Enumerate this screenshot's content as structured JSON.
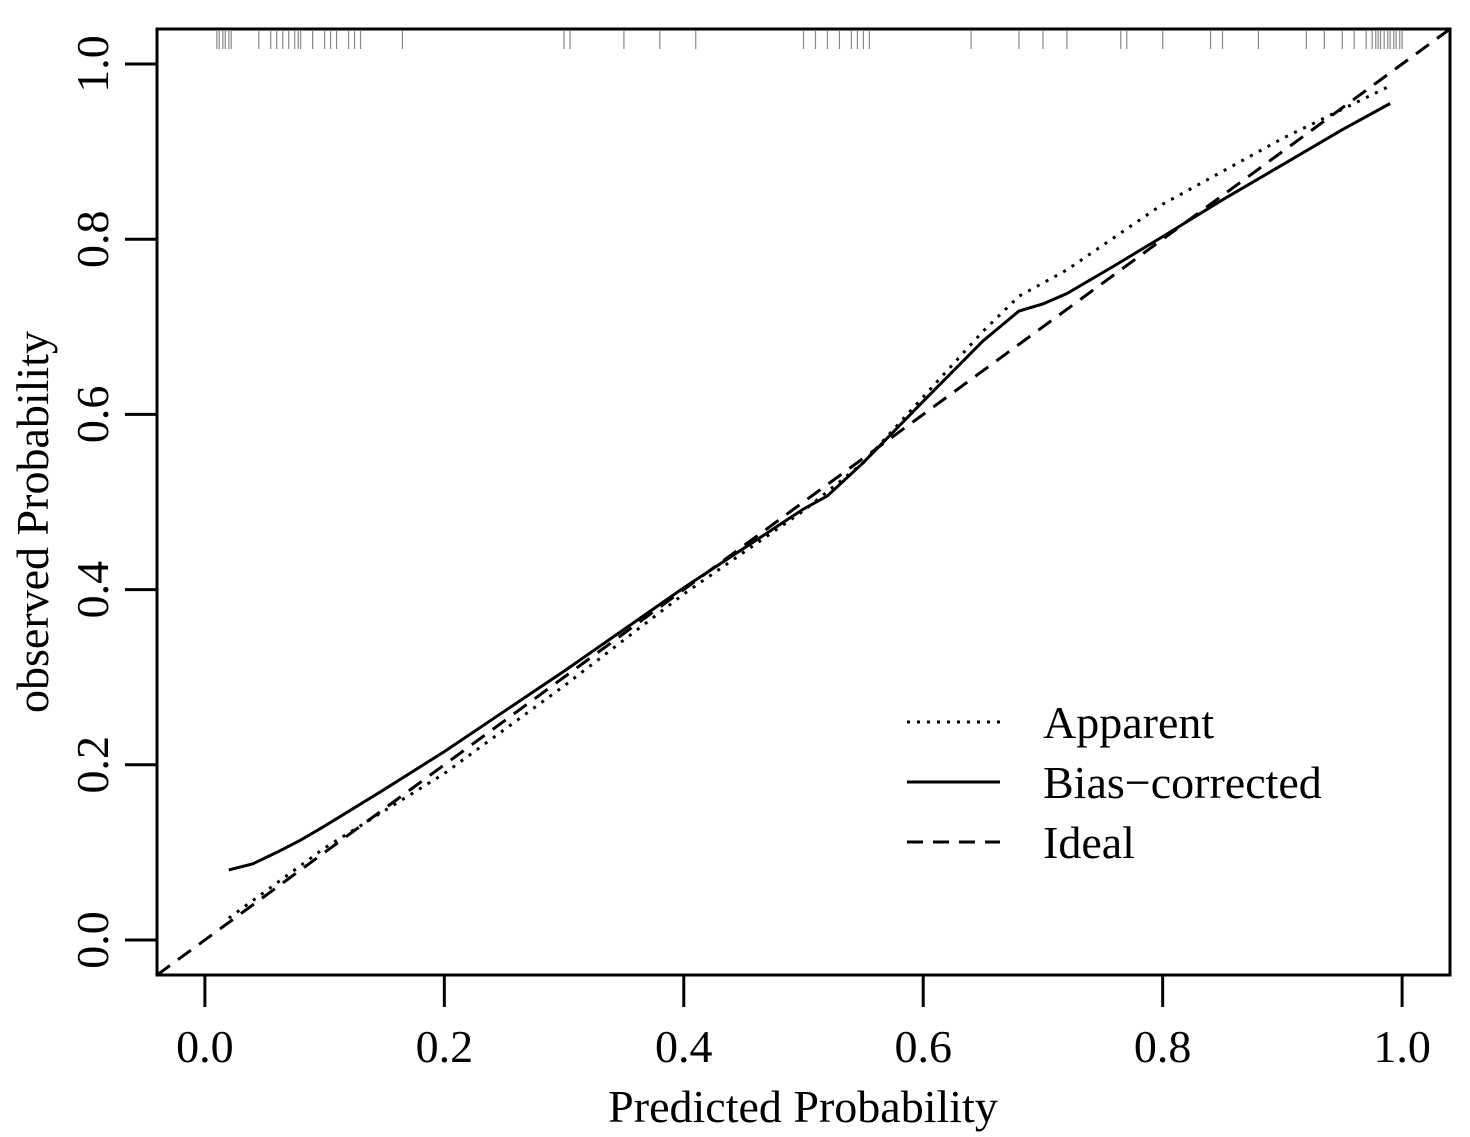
{
  "chart_data": {
    "type": "line",
    "xlabel": "Predicted Probability",
    "ylabel": "observed Probability",
    "xlim": [
      -0.04,
      1.04
    ],
    "ylim": [
      -0.04,
      1.04
    ],
    "x_ticks": [
      0.0,
      0.2,
      0.4,
      0.6,
      0.8,
      1.0
    ],
    "y_ticks": [
      0.0,
      0.2,
      0.4,
      0.6,
      0.8,
      1.0
    ],
    "x_tick_labels": [
      "0.0",
      "0.2",
      "0.4",
      "0.6",
      "0.8",
      "1.0"
    ],
    "y_tick_labels": [
      "0.0",
      "0.2",
      "0.4",
      "0.6",
      "0.8",
      "1.0"
    ],
    "grid": false,
    "legend_position": "bottom-right",
    "series": [
      {
        "name": "Apparent",
        "style": "dotted",
        "color": "#000000",
        "x": [
          0.02,
          0.1,
          0.2,
          0.3,
          0.4,
          0.5,
          0.55,
          0.6,
          0.65,
          0.68,
          0.72,
          0.8,
          0.9,
          0.99
        ],
        "y": [
          0.025,
          0.105,
          0.19,
          0.29,
          0.395,
          0.49,
          0.545,
          0.62,
          0.695,
          0.735,
          0.765,
          0.84,
          0.915,
          0.975
        ]
      },
      {
        "name": "Bias−corrected",
        "style": "solid",
        "color": "#000000",
        "x": [
          0.02,
          0.04,
          0.06,
          0.08,
          0.1,
          0.15,
          0.2,
          0.3,
          0.4,
          0.5,
          0.52,
          0.55,
          0.6,
          0.65,
          0.68,
          0.7,
          0.72,
          0.76,
          0.8,
          0.85,
          0.9,
          0.95,
          0.99
        ],
        "y": [
          0.08,
          0.087,
          0.1,
          0.114,
          0.13,
          0.172,
          0.215,
          0.307,
          0.402,
          0.492,
          0.507,
          0.545,
          0.615,
          0.684,
          0.718,
          0.726,
          0.738,
          0.77,
          0.803,
          0.845,
          0.885,
          0.925,
          0.955
        ]
      },
      {
        "name": "Ideal",
        "style": "dashed",
        "color": "#000000",
        "x": [
          -0.04,
          1.04
        ],
        "y": [
          -0.04,
          1.04
        ]
      }
    ],
    "rug": [
      0.01,
      0.012,
      0.015,
      0.017,
      0.02,
      0.022,
      0.045,
      0.055,
      0.06,
      0.065,
      0.07,
      0.075,
      0.078,
      0.08,
      0.09,
      0.1,
      0.105,
      0.11,
      0.12,
      0.125,
      0.13,
      0.165,
      0.3,
      0.305,
      0.35,
      0.38,
      0.41,
      0.51,
      0.5,
      0.52,
      0.53,
      0.54,
      0.545,
      0.55,
      0.555,
      0.64,
      0.68,
      0.7,
      0.72,
      0.765,
      0.77,
      0.8,
      0.84,
      0.85,
      0.88,
      0.92,
      0.935,
      0.95,
      0.96,
      0.97,
      0.975,
      0.978,
      0.98,
      0.982,
      0.985,
      0.988,
      0.99,
      0.993,
      0.995,
      0.998,
      1.0
    ]
  }
}
